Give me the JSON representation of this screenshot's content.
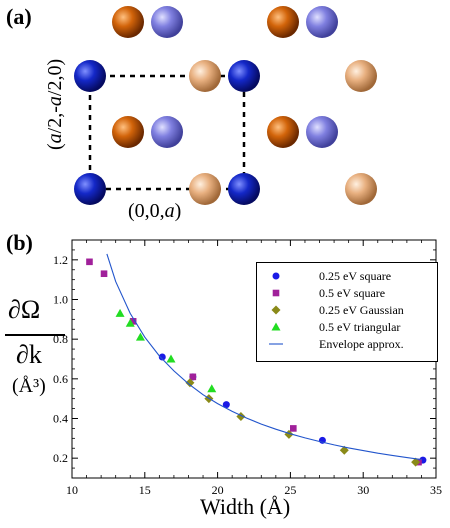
{
  "panel_a": {
    "label": "(a)",
    "lattice_vector_horizontal": "(0,0,a)",
    "lattice_vector_vertical": "(a/2,-a/2,0)",
    "colors": {
      "dark_blue": "#1428c8",
      "light_blue": "#8080e0",
      "orange": "#d2640a",
      "peach": "#e8b080"
    }
  },
  "panel_b": {
    "label": "(b)",
    "ylabel_numerator": "∂Ω",
    "ylabel_denominator": "∂k",
    "ylabel_unit": "(Å³)",
    "xlabel": "Width (Å)"
  },
  "chart_data": {
    "type": "scatter",
    "xlabel": "Width (Å)",
    "ylabel": "∂Ω/∂k (Å³)",
    "xlim": [
      10,
      35
    ],
    "ylim": [
      0.1,
      1.3
    ],
    "x_ticks": [
      10,
      15,
      20,
      25,
      30,
      35
    ],
    "y_ticks": [
      0.2,
      0.4,
      0.6,
      0.8,
      1.0,
      1.2
    ],
    "x_tick_labels": [
      "10",
      "15",
      "20",
      "25",
      "30",
      "35"
    ],
    "y_tick_labels": [
      "0.2",
      "0.4",
      "0.6",
      "0.8",
      "1.0",
      "1.2"
    ],
    "grid": false,
    "legend_position": "top-right",
    "series": [
      {
        "name": "0.25 eV square",
        "marker": "circle",
        "color": "#1a1ae6",
        "points": [
          [
            16.2,
            0.71
          ],
          [
            18.3,
            0.61
          ],
          [
            20.6,
            0.47
          ],
          [
            27.2,
            0.29
          ],
          [
            34.1,
            0.19
          ]
        ]
      },
      {
        "name": "0.5 eV square",
        "marker": "square",
        "color": "#a0209a",
        "points": [
          [
            11.2,
            1.19
          ],
          [
            12.2,
            1.13
          ],
          [
            14.2,
            0.89
          ],
          [
            18.3,
            0.61
          ],
          [
            25.2,
            0.35
          ],
          [
            33.8,
            0.18
          ]
        ]
      },
      {
        "name": "0.25 eV Gaussian",
        "marker": "diamond",
        "color": "#8a8a18",
        "points": [
          [
            18.1,
            0.58
          ],
          [
            19.4,
            0.5
          ],
          [
            21.6,
            0.41
          ],
          [
            24.9,
            0.32
          ],
          [
            28.7,
            0.24
          ],
          [
            33.6,
            0.18
          ]
        ]
      },
      {
        "name": "0.5 eV triangular",
        "marker": "triangle",
        "color": "#22dd22",
        "points": [
          [
            13.3,
            0.93
          ],
          [
            14.0,
            0.88
          ],
          [
            14.7,
            0.81
          ],
          [
            16.8,
            0.7
          ],
          [
            19.6,
            0.55
          ]
        ]
      },
      {
        "name": "Envelope approx.",
        "marker": "line",
        "color": "#2255cc",
        "x": [
          12.4,
          13,
          14,
          15,
          16,
          17,
          18,
          19,
          20,
          21,
          22,
          23,
          24,
          25,
          26,
          27,
          28,
          29,
          30,
          31,
          32,
          33,
          34
        ],
        "y": [
          1.23,
          1.09,
          0.93,
          0.81,
          0.715,
          0.64,
          0.575,
          0.52,
          0.475,
          0.436,
          0.402,
          0.372,
          0.346,
          0.323,
          0.302,
          0.284,
          0.267,
          0.252,
          0.238,
          0.225,
          0.214,
          0.203,
          0.193
        ]
      }
    ]
  }
}
